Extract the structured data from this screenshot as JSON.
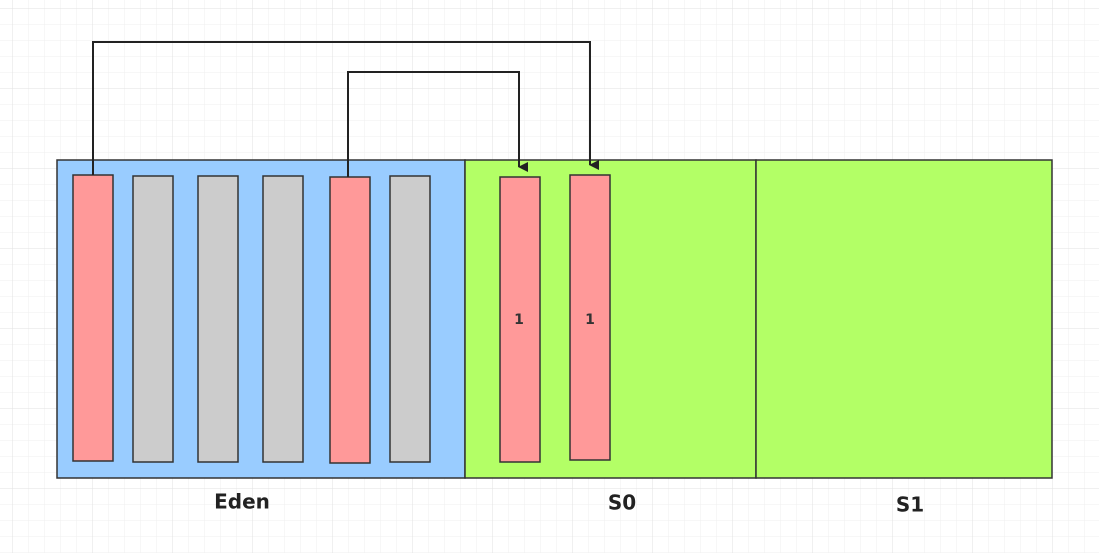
{
  "regions": [
    {
      "label": "Eden"
    },
    {
      "label": "S0"
    },
    {
      "label": "S1"
    }
  ],
  "survivor_blocks": [
    {
      "label": "1"
    },
    {
      "label": "1"
    }
  ]
}
